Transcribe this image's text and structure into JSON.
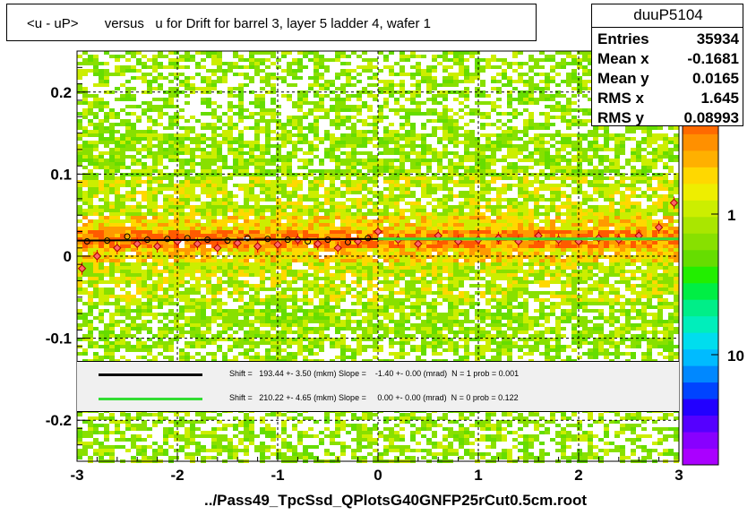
{
  "title": "<u - uP>       versus   u for Drift for barrel 3, layer 5 ladder 4, wafer 1",
  "stats": {
    "name": "duuP5104",
    "rows": [
      {
        "label": "Entries",
        "value": "35934"
      },
      {
        "label": "Mean x",
        "value": "-0.1681"
      },
      {
        "label": "Mean y",
        "value": "0.0165"
      },
      {
        "label": "RMS x",
        "value": "1.645"
      },
      {
        "label": "RMS y",
        "value": "0.08993"
      }
    ]
  },
  "fits": [
    {
      "color": "#000000",
      "text": "Shift =   193.44 +- 3.50 (mkm) Slope =    -1.40 +- 0.00 (mrad)  N = 1 prob = 0.001"
    },
    {
      "color": "#33dd33",
      "text": "Shift =   210.22 +- 4.65 (mkm) Slope =     0.00 +- 0.00 (mrad)  N = 0 prob = 0.122"
    }
  ],
  "xlabel": "../Pass49_TpcSsd_QPlotsG40GNFP25rCut0.5cm.root",
  "chart_data": {
    "type": "heatmap",
    "title": "<u - uP>       versus   u for Drift for barrel 3, layer 5 ladder 4, wafer 1",
    "xlabel": "../Pass49_TpcSsd_QPlotsG40GNFP25rCut0.5cm.root",
    "ylabel": "",
    "xlim": [
      -3,
      3
    ],
    "ylim": [
      -0.25,
      0.25
    ],
    "x_ticks": [
      "-3",
      "-2",
      "-1",
      "0",
      "1",
      "2",
      "3"
    ],
    "y_ticks": [
      "-0.2",
      "-0.1",
      "0",
      "0.1",
      "0.2"
    ],
    "z_ticks": [
      "1",
      "10"
    ],
    "z_scale": "log",
    "grid": true,
    "profile_black": {
      "x": [
        -2.9,
        -2.7,
        -2.5,
        -2.3,
        -2.1,
        -1.9,
        -1.7,
        -1.5,
        -1.3,
        -1.1,
        -0.9,
        -0.7,
        -0.5,
        -0.3,
        -0.1
      ],
      "y": [
        0.018,
        0.019,
        0.024,
        0.02,
        0.021,
        0.022,
        0.02,
        0.019,
        0.022,
        0.021,
        0.02,
        0.018,
        0.02,
        0.017,
        0.022
      ]
    },
    "profile_red": {
      "x": [
        -2.95,
        -2.8,
        -2.6,
        -2.4,
        -2.2,
        -2.0,
        -1.8,
        -1.6,
        -1.4,
        -1.2,
        -1.0,
        -0.8,
        -0.6,
        -0.4,
        -0.2,
        0.0,
        0.2,
        0.4,
        0.6,
        0.8,
        1.0,
        1.2,
        1.4,
        1.6,
        1.8,
        2.0,
        2.2,
        2.4,
        2.6,
        2.8,
        2.95
      ],
      "y": [
        -0.015,
        0.0,
        0.01,
        0.015,
        0.012,
        0.018,
        0.015,
        0.01,
        0.016,
        0.012,
        0.014,
        0.02,
        0.015,
        0.01,
        0.018,
        0.03,
        0.02,
        0.015,
        0.025,
        0.018,
        0.02,
        0.022,
        0.018,
        0.025,
        0.02,
        0.018,
        0.022,
        0.02,
        0.025,
        0.035,
        0.065
      ]
    },
    "fit_black": {
      "x": [
        -3,
        0
      ],
      "y": [
        0.019,
        0.021
      ]
    },
    "fit_green": {
      "x": [
        0,
        3
      ],
      "y": [
        0.021,
        0.021
      ]
    }
  }
}
